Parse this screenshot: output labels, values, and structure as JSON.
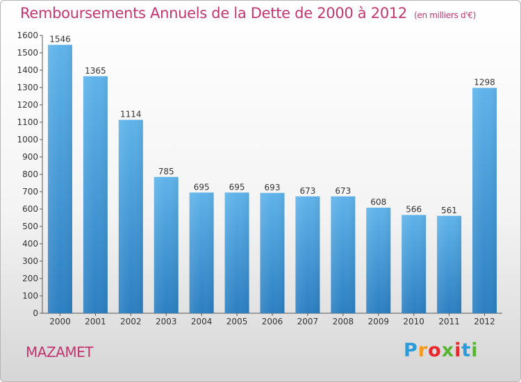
{
  "header": {
    "title": "Remboursements Annuels de la Dette de 2000 à 2012",
    "unit": "(en milliers d'€)"
  },
  "footer": {
    "city": "MAZAMET",
    "logo_letters": [
      "P",
      "r",
      "o",
      "x",
      "i",
      "t",
      "i"
    ],
    "logo_colors": [
      "#2a9ad8",
      "#f39a1e",
      "#e8262b",
      "#58b530",
      "#e8262b",
      "#2a9ad8",
      "#58b530"
    ]
  },
  "colors": {
    "title": "#c2356f",
    "bar_top": "#5fb3ea",
    "bar_bottom": "#2b7fc1"
  },
  "chart_data": {
    "type": "bar",
    "title": "Remboursements Annuels de la Dette de 2000 à 2012",
    "xlabel": "",
    "ylabel": "",
    "categories": [
      "2000",
      "2001",
      "2002",
      "2003",
      "2004",
      "2005",
      "2006",
      "2007",
      "2008",
      "2009",
      "2010",
      "2011",
      "2012"
    ],
    "values": [
      1546,
      1365,
      1114,
      785,
      695,
      695,
      693,
      673,
      673,
      608,
      566,
      561,
      1298
    ],
    "ylim": [
      0,
      1600
    ],
    "yticks": [
      0,
      100,
      200,
      300,
      400,
      500,
      600,
      700,
      800,
      900,
      1000,
      1100,
      1200,
      1300,
      1400,
      1500,
      1600
    ],
    "grid": false,
    "legend": "none"
  }
}
